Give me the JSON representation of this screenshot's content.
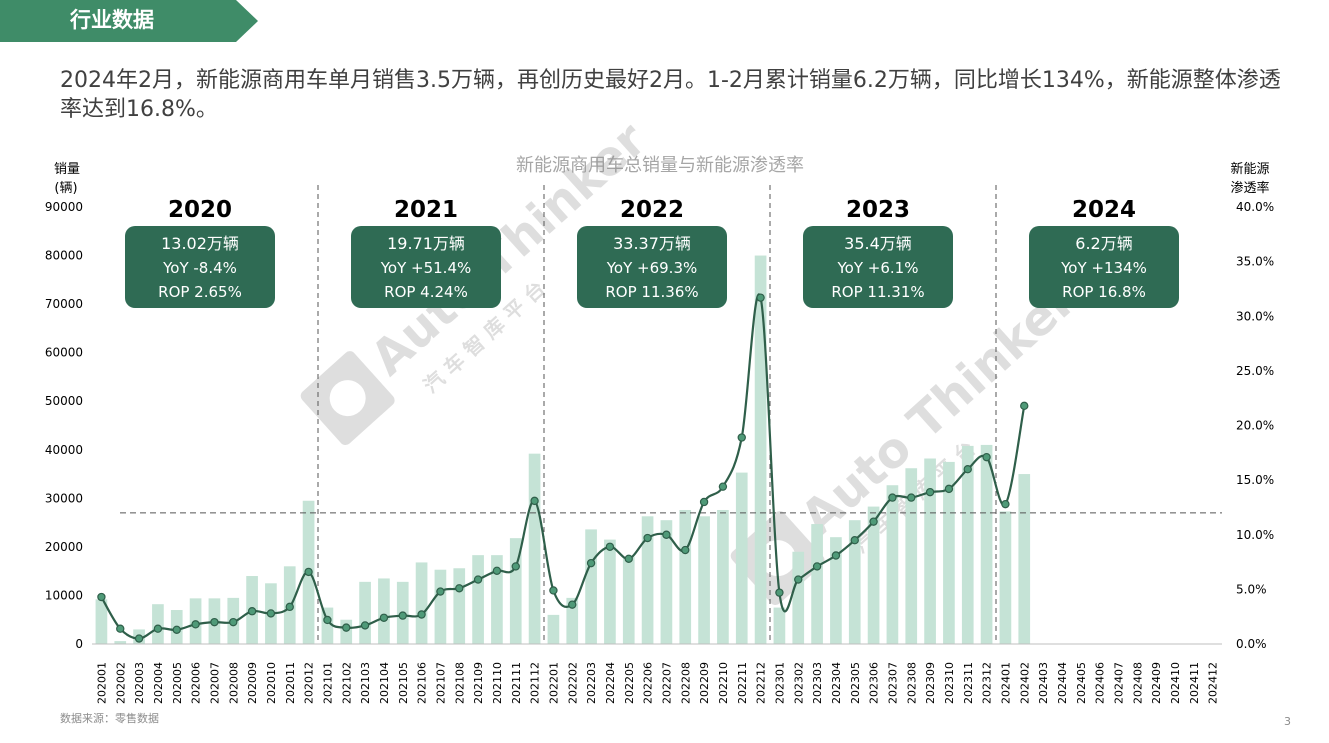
{
  "section": {
    "title": "行业数据"
  },
  "headline": "2024年2月，新能源商用车单月销售3.5万辆，再创历史最好2月。1-2月累计销量6.2万辆，同比增长134%，新能源整体渗透率达到16.8%。",
  "source": "数据来源：零售数据",
  "page_number": "3",
  "watermark": {
    "text": "Auto Thinker",
    "subtext": "汽 车 智 库 平 台"
  },
  "colors": {
    "bar": "#c5e3d6",
    "line": "#2f5f4a",
    "marker": "#4f9a78",
    "box": "#2f6b54",
    "banner": "#3f8c68",
    "text": "#404040"
  },
  "chart_data": {
    "type": "bar",
    "title": "新能源商用车总销量与新能源渗透率",
    "ylabel": "销量\n(辆)",
    "y2label": "新能源\n渗透率",
    "ylim": [
      0,
      90000
    ],
    "y2lim": [
      0,
      0.4
    ],
    "yticks": [
      "0",
      "10000",
      "20000",
      "30000",
      "40000",
      "50000",
      "60000",
      "70000",
      "80000",
      "90000"
    ],
    "y2ticks": [
      "0.0%",
      "5.0%",
      "10.0%",
      "15.0%",
      "20.0%",
      "25.0%",
      "30.0%",
      "35.0%",
      "40.0%"
    ],
    "reference_y2": 0.12,
    "categories": [
      "202001",
      "202002",
      "202003",
      "202004",
      "202005",
      "202006",
      "202007",
      "202008",
      "202009",
      "202010",
      "202011",
      "202012",
      "202101",
      "202102",
      "202103",
      "202104",
      "202105",
      "202106",
      "202107",
      "202108",
      "202109",
      "202110",
      "202111",
      "202112",
      "202201",
      "202202",
      "202203",
      "202204",
      "202205",
      "202206",
      "202207",
      "202208",
      "202209",
      "202210",
      "202211",
      "202212",
      "202301",
      "202302",
      "202303",
      "202304",
      "202305",
      "202306",
      "202307",
      "202308",
      "202309",
      "202310",
      "202311",
      "202312",
      "202401",
      "202402",
      "202403",
      "202404",
      "202405",
      "202406",
      "202407",
      "202408",
      "202409",
      "202410",
      "202411",
      "202412"
    ],
    "series": [
      {
        "name": "销量",
        "type": "bar",
        "values": [
          9200,
          600,
          3000,
          8200,
          7000,
          9400,
          9400,
          9500,
          14000,
          12500,
          16000,
          29500,
          7500,
          5000,
          12800,
          13500,
          12800,
          16800,
          15300,
          15600,
          18300,
          18300,
          21800,
          39200,
          6000,
          9500,
          23600,
          21500,
          18000,
          26300,
          25500,
          27600,
          26300,
          27600,
          35300,
          80000,
          7500,
          19000,
          24700,
          22000,
          25500,
          28300,
          32700,
          36200,
          38200,
          37500,
          40800,
          41000,
          27300,
          35000,
          null,
          null,
          null,
          null,
          null,
          null,
          null,
          null,
          null,
          null
        ]
      },
      {
        "name": "渗透率",
        "type": "line",
        "axis": "y2",
        "values": [
          0.043,
          0.014,
          0.005,
          0.014,
          0.013,
          0.018,
          0.02,
          0.02,
          0.03,
          0.028,
          0.034,
          0.066,
          0.022,
          0.015,
          0.017,
          0.024,
          0.026,
          0.027,
          0.048,
          0.051,
          0.059,
          0.067,
          0.071,
          0.131,
          0.049,
          0.036,
          0.074,
          0.089,
          0.078,
          0.097,
          0.1,
          0.086,
          0.13,
          0.144,
          0.189,
          0.317,
          0.047,
          0.059,
          0.071,
          0.081,
          0.095,
          0.112,
          0.134,
          0.134,
          0.139,
          0.142,
          0.16,
          0.171,
          0.128,
          0.218,
          null,
          null,
          null,
          null,
          null,
          null,
          null,
          null,
          null,
          null
        ]
      }
    ],
    "years": [
      {
        "year": "2020",
        "volume": "13.02万辆",
        "yoy": "YoY -8.4%",
        "rop": "ROP 2.65%"
      },
      {
        "year": "2021",
        "volume": "19.71万辆",
        "yoy": "YoY +51.4%",
        "rop": "ROP 4.24%"
      },
      {
        "year": "2022",
        "volume": "33.37万辆",
        "yoy": "YoY +69.3%",
        "rop": "ROP 11.36%"
      },
      {
        "year": "2023",
        "volume": "35.4万辆",
        "yoy": "YoY +6.1%",
        "rop": "ROP 11.31%"
      },
      {
        "year": "2024",
        "volume": "6.2万辆",
        "yoy": "YoY +134%",
        "rop": "ROP 16.8%"
      }
    ],
    "grid": false
  }
}
